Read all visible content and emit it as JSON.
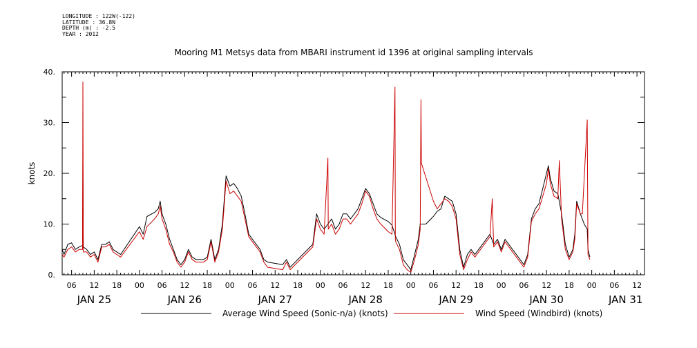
{
  "meta": {
    "longitude": "LONGITUDE : 122W(-122)",
    "latitude": "LATITUDE : 36.8N",
    "depth": "DEPTH (m) : -2.5",
    "year": "YEAR : 2012"
  },
  "chart_data": {
    "type": "line",
    "title": "Mooring M1 Metsys data from MBARI instrument id 1396 at original sampling intervals",
    "xlabel": "",
    "ylabel": "knots",
    "ylim": [
      0,
      40
    ],
    "yticks": [
      "0.",
      "10.",
      "20.",
      "30.",
      "40."
    ],
    "x_unit": "hours from JAN 25 00:00",
    "xlim": [
      3.5,
      158
    ],
    "hour_ticks": [
      {
        "x": 6,
        "label": "06"
      },
      {
        "x": 12,
        "label": "12"
      },
      {
        "x": 18,
        "label": "18"
      },
      {
        "x": 24,
        "label": "00"
      },
      {
        "x": 30,
        "label": "06"
      },
      {
        "x": 36,
        "label": "12"
      },
      {
        "x": 42,
        "label": "18"
      },
      {
        "x": 48,
        "label": "00"
      },
      {
        "x": 54,
        "label": "06"
      },
      {
        "x": 60,
        "label": "12"
      },
      {
        "x": 66,
        "label": "18"
      },
      {
        "x": 72,
        "label": "00"
      },
      {
        "x": 78,
        "label": "06"
      },
      {
        "x": 84,
        "label": "12"
      },
      {
        "x": 90,
        "label": "18"
      },
      {
        "x": 96,
        "label": "00"
      },
      {
        "x": 102,
        "label": "06"
      },
      {
        "x": 108,
        "label": "12"
      },
      {
        "x": 114,
        "label": "18"
      },
      {
        "x": 120,
        "label": "00"
      },
      {
        "x": 126,
        "label": "06"
      },
      {
        "x": 132,
        "label": "12"
      },
      {
        "x": 138,
        "label": "18"
      },
      {
        "x": 144,
        "label": "00"
      },
      {
        "x": 150,
        "label": "06"
      },
      {
        "x": 156,
        "label": "12"
      }
    ],
    "date_labels": [
      {
        "x": 12,
        "label": "JAN 25"
      },
      {
        "x": 36,
        "label": "JAN 26"
      },
      {
        "x": 60,
        "label": "JAN 27"
      },
      {
        "x": 84,
        "label": "JAN 28"
      },
      {
        "x": 108,
        "label": "JAN 29"
      },
      {
        "x": 132,
        "label": "JAN 30"
      },
      {
        "x": 153,
        "label": "JAN 31"
      }
    ],
    "series": [
      {
        "name": "Average Wind Speed (Sonic-n/a) (knots)",
        "color": "#000000",
        "points": [
          [
            3.5,
            5
          ],
          [
            4,
            4
          ],
          [
            5,
            6
          ],
          [
            6,
            6.3
          ],
          [
            7,
            5
          ],
          [
            8,
            5.5
          ],
          [
            8.9,
            5.8
          ],
          [
            9,
            22
          ],
          [
            9.1,
            5.5
          ],
          [
            10,
            5
          ],
          [
            11,
            4
          ],
          [
            12,
            4.5
          ],
          [
            13,
            3
          ],
          [
            14,
            6
          ],
          [
            15,
            6
          ],
          [
            16,
            6.5
          ],
          [
            17,
            5
          ],
          [
            18,
            4.5
          ],
          [
            19,
            4
          ],
          [
            24,
            9.5
          ],
          [
            25,
            8
          ],
          [
            26,
            11.5
          ],
          [
            28,
            12.3
          ],
          [
            29,
            13
          ],
          [
            29.5,
            14.5
          ],
          [
            30,
            12
          ],
          [
            31,
            10
          ],
          [
            32,
            7
          ],
          [
            33,
            5
          ],
          [
            34,
            3
          ],
          [
            35,
            2
          ],
          [
            36,
            3
          ],
          [
            37,
            5
          ],
          [
            38,
            3.5
          ],
          [
            39,
            3
          ],
          [
            40,
            3
          ],
          [
            41,
            3
          ],
          [
            42,
            3.5
          ],
          [
            43,
            7
          ],
          [
            44,
            3
          ],
          [
            45,
            5
          ],
          [
            46,
            10
          ],
          [
            47,
            19.5
          ],
          [
            48,
            17.5
          ],
          [
            49,
            18
          ],
          [
            50,
            17
          ],
          [
            51,
            15.5
          ],
          [
            52,
            12
          ],
          [
            53,
            8
          ],
          [
            54,
            7
          ],
          [
            55,
            6
          ],
          [
            56,
            5
          ],
          [
            57,
            3
          ],
          [
            58,
            2.5
          ],
          [
            62,
            2
          ],
          [
            63,
            3
          ],
          [
            64,
            1.5
          ],
          [
            66,
            3
          ],
          [
            70,
            6
          ],
          [
            71,
            12
          ],
          [
            72,
            10
          ],
          [
            73,
            9
          ],
          [
            74,
            10
          ],
          [
            75,
            11
          ],
          [
            76,
            9
          ],
          [
            77,
            10
          ],
          [
            78,
            12
          ],
          [
            79,
            12
          ],
          [
            80,
            11
          ],
          [
            81,
            12
          ],
          [
            82,
            13
          ],
          [
            83,
            15
          ],
          [
            84,
            17
          ],
          [
            85,
            16
          ],
          [
            86,
            14
          ],
          [
            87,
            12
          ],
          [
            88,
            11.3
          ],
          [
            90,
            10.5
          ],
          [
            91,
            9.8
          ],
          [
            92,
            7.5
          ],
          [
            93,
            6
          ],
          [
            94,
            3
          ],
          [
            95,
            2
          ],
          [
            96,
            1
          ],
          [
            97,
            4
          ],
          [
            98,
            7
          ],
          [
            98.5,
            10
          ],
          [
            100,
            10
          ],
          [
            102,
            11.5
          ],
          [
            103,
            12.5
          ],
          [
            104,
            13
          ],
          [
            105,
            15.5
          ],
          [
            106,
            15
          ],
          [
            107,
            14.5
          ],
          [
            108,
            12
          ],
          [
            109,
            5
          ],
          [
            110,
            1.5
          ],
          [
            111,
            4
          ],
          [
            112,
            5
          ],
          [
            113,
            4
          ],
          [
            114,
            5
          ],
          [
            115,
            6
          ],
          [
            116,
            7
          ],
          [
            117,
            8
          ],
          [
            118,
            6
          ],
          [
            119,
            7
          ],
          [
            120,
            5
          ],
          [
            121,
            7
          ],
          [
            122,
            6
          ],
          [
            123,
            5
          ],
          [
            124,
            4
          ],
          [
            125,
            3
          ],
          [
            126,
            2
          ],
          [
            127,
            4
          ],
          [
            128,
            11
          ],
          [
            129,
            13
          ],
          [
            130,
            14
          ],
          [
            131,
            17
          ],
          [
            132,
            20
          ],
          [
            132.5,
            21.5
          ],
          [
            133,
            19
          ],
          [
            134,
            16.5
          ],
          [
            135,
            16
          ],
          [
            136,
            12
          ],
          [
            137,
            6
          ],
          [
            138,
            3.5
          ],
          [
            139,
            5
          ],
          [
            139.5,
            8
          ],
          [
            140,
            14.5
          ],
          [
            141,
            12
          ],
          [
            142,
            10
          ],
          [
            142.8,
            9
          ],
          [
            143,
            5
          ],
          [
            143.5,
            3.5
          ]
        ]
      },
      {
        "name": "Wind Speed (Windbird) (knots)",
        "color": "#cc0000",
        "points": [
          [
            3.5,
            4
          ],
          [
            4,
            3.5
          ],
          [
            5,
            5
          ],
          [
            6,
            5.5
          ],
          [
            7,
            4.5
          ],
          [
            8,
            5
          ],
          [
            8.9,
            5
          ],
          [
            9,
            38
          ],
          [
            9.1,
            4.5
          ],
          [
            10,
            4.5
          ],
          [
            11,
            3.5
          ],
          [
            12,
            4
          ],
          [
            13,
            2.5
          ],
          [
            14,
            5.5
          ],
          [
            15,
            5.5
          ],
          [
            16,
            6
          ],
          [
            17,
            4.5
          ],
          [
            18,
            4
          ],
          [
            19,
            3.5
          ],
          [
            24,
            8.5
          ],
          [
            25,
            7
          ],
          [
            26,
            9.5
          ],
          [
            28,
            11
          ],
          [
            29,
            12
          ],
          [
            29.5,
            13.5
          ],
          [
            30,
            11
          ],
          [
            31,
            9
          ],
          [
            32,
            6
          ],
          [
            33,
            4.5
          ],
          [
            34,
            2.5
          ],
          [
            35,
            1.5
          ],
          [
            36,
            2.5
          ],
          [
            37,
            4.5
          ],
          [
            38,
            3
          ],
          [
            39,
            2.5
          ],
          [
            40,
            2.5
          ],
          [
            41,
            2.5
          ],
          [
            42,
            3
          ],
          [
            43,
            6.5
          ],
          [
            44,
            2.5
          ],
          [
            45,
            4.5
          ],
          [
            46,
            9
          ],
          [
            47,
            18.5
          ],
          [
            48,
            16
          ],
          [
            49,
            16.5
          ],
          [
            50,
            15.5
          ],
          [
            51,
            14.5
          ],
          [
            52,
            11
          ],
          [
            53,
            7.5
          ],
          [
            54,
            6.5
          ],
          [
            55,
            5.5
          ],
          [
            56,
            4.5
          ],
          [
            57,
            2.5
          ],
          [
            58,
            1.5
          ],
          [
            62,
            1
          ],
          [
            63,
            2.5
          ],
          [
            64,
            1
          ],
          [
            66,
            2.5
          ],
          [
            70,
            5.5
          ],
          [
            71,
            11
          ],
          [
            72,
            9
          ],
          [
            73,
            8
          ],
          [
            74,
            23
          ],
          [
            74.1,
            9
          ],
          [
            75,
            10
          ],
          [
            76,
            8
          ],
          [
            77,
            9
          ],
          [
            78,
            11
          ],
          [
            79,
            11
          ],
          [
            80,
            10
          ],
          [
            81,
            11
          ],
          [
            82,
            12
          ],
          [
            83,
            14
          ],
          [
            84,
            16.5
          ],
          [
            85,
            15.5
          ],
          [
            86,
            13
          ],
          [
            87,
            11
          ],
          [
            88,
            10
          ],
          [
            90,
            8.5
          ],
          [
            91,
            8
          ],
          [
            91.8,
            37
          ],
          [
            91.9,
            7
          ],
          [
            92,
            6.5
          ],
          [
            93,
            5
          ],
          [
            94,
            2
          ],
          [
            95,
            1
          ],
          [
            96,
            0.5
          ],
          [
            97,
            3
          ],
          [
            98,
            6
          ],
          [
            98.5,
            9
          ],
          [
            98.7,
            34.5
          ],
          [
            98.8,
            22
          ],
          [
            102,
            14.5
          ],
          [
            103,
            13
          ],
          [
            104,
            14
          ],
          [
            105,
            15
          ],
          [
            106,
            14.5
          ],
          [
            107,
            13.5
          ],
          [
            108,
            11
          ],
          [
            109,
            4
          ],
          [
            110,
            1
          ],
          [
            111,
            3
          ],
          [
            112,
            4.5
          ],
          [
            113,
            3.5
          ],
          [
            114,
            4.5
          ],
          [
            115,
            5.5
          ],
          [
            116,
            6.5
          ],
          [
            117,
            7.5
          ],
          [
            117.6,
            15
          ],
          [
            118,
            5.5
          ],
          [
            119,
            6.5
          ],
          [
            120,
            4.5
          ],
          [
            121,
            6.5
          ],
          [
            122,
            5.5
          ],
          [
            123,
            4.5
          ],
          [
            124,
            3.5
          ],
          [
            125,
            2.5
          ],
          [
            126,
            1.5
          ],
          [
            127,
            3.5
          ],
          [
            128,
            10.5
          ],
          [
            129,
            12
          ],
          [
            130,
            13
          ],
          [
            131,
            15.5
          ],
          [
            132,
            18
          ],
          [
            132.5,
            21
          ],
          [
            133,
            18
          ],
          [
            134,
            15.5
          ],
          [
            135,
            15
          ],
          [
            135.4,
            22.5
          ],
          [
            136,
            11
          ],
          [
            137,
            5
          ],
          [
            138,
            3
          ],
          [
            139,
            4.5
          ],
          [
            139.5,
            7
          ],
          [
            140,
            14
          ],
          [
            141,
            12
          ],
          [
            141.5,
            12
          ],
          [
            142.8,
            30.5
          ],
          [
            143,
            4
          ],
          [
            143.5,
            3
          ]
        ]
      }
    ]
  }
}
